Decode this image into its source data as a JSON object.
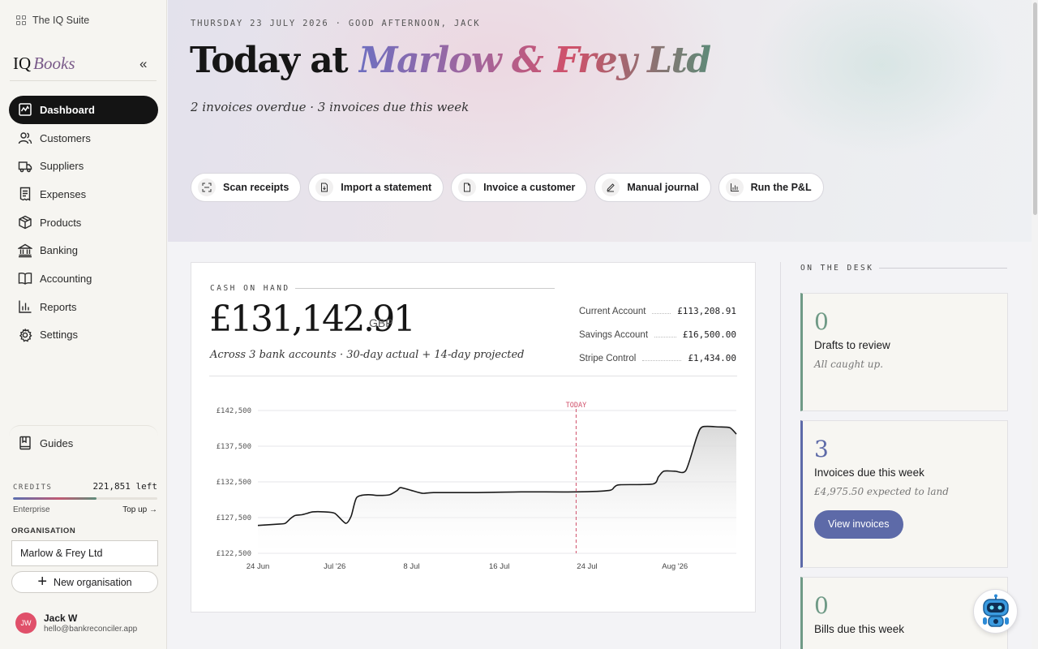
{
  "suite": {
    "label": "The IQ Suite"
  },
  "brand": {
    "iq": "IQ",
    "books": "Books"
  },
  "nav": [
    {
      "label": "Dashboard",
      "icon": "dashboard-icon",
      "active": true
    },
    {
      "label": "Customers",
      "icon": "users-icon"
    },
    {
      "label": "Suppliers",
      "icon": "truck-icon"
    },
    {
      "label": "Expenses",
      "icon": "receipt-icon"
    },
    {
      "label": "Products",
      "icon": "box-icon"
    },
    {
      "label": "Banking",
      "icon": "bank-icon"
    },
    {
      "label": "Accounting",
      "icon": "book-icon"
    },
    {
      "label": "Reports",
      "icon": "bar-chart-icon"
    },
    {
      "label": "Settings",
      "icon": "gear-icon"
    }
  ],
  "guides": {
    "label": "Guides"
  },
  "credits": {
    "label": "CREDITS",
    "value": "221,851 left",
    "plan": "Enterprise",
    "topup": "Top up →",
    "fraction": 0.58
  },
  "organisation": {
    "label": "ORGANISATION",
    "selected": "Marlow & Frey Ltd",
    "new_label": "New organisation"
  },
  "user": {
    "initials": "JW",
    "name": "Jack W",
    "email": "hello@bankreconciler.app"
  },
  "header": {
    "dateline": "THURSDAY 23 JULY 2026 · GOOD AFTERNOON, JACK",
    "title_prefix": "Today at",
    "title_org": "Marlow & Frey Ltd",
    "subline": "2 invoices overdue · 3 invoices due this week"
  },
  "actions": [
    {
      "label": "Scan receipts",
      "icon": "scan-icon"
    },
    {
      "label": "Import a statement",
      "icon": "file-import-icon"
    },
    {
      "label": "Invoice a customer",
      "icon": "invoice-icon"
    },
    {
      "label": "Manual journal",
      "icon": "pencil-icon"
    },
    {
      "label": "Run the P&L",
      "icon": "bar-chart-icon"
    }
  ],
  "cash": {
    "label": "CASH ON HAND",
    "amount": "£131,142.91",
    "currency": "GBP",
    "note": "Across 3 bank accounts · 30-day actual + 14-day projected",
    "accounts": [
      {
        "name": "Current Account",
        "amount": "£113,208.91"
      },
      {
        "name": "Savings Account",
        "amount": "£16,500.00"
      },
      {
        "name": "Stripe Control",
        "amount": "£1,434.00"
      }
    ]
  },
  "chart_data": {
    "type": "area",
    "today_label": "TODAY",
    "today_x": 29,
    "ylim": [
      122500,
      142500
    ],
    "yticks": [
      "£142,500",
      "£137,500",
      "£132,500",
      "£127,500",
      "£122,500"
    ],
    "ytick_values": [
      142500,
      137500,
      132500,
      127500,
      122500
    ],
    "xticks": [
      "24 Jun",
      "Jul '26",
      "8 Jul",
      "16 Jul",
      "24 Jul",
      "Aug '26"
    ],
    "xtick_values": [
      0,
      7,
      14,
      22,
      30,
      38
    ],
    "x": [
      0,
      2,
      2.5,
      3,
      3.4,
      4,
      4.5,
      5,
      6,
      7,
      8,
      8.5,
      9,
      10,
      11,
      12,
      12.7,
      13,
      14,
      15,
      16,
      20,
      24,
      29,
      32,
      32.5,
      33,
      36,
      36.5,
      37,
      38,
      39,
      40,
      40.5,
      42,
      43,
      43.6
    ],
    "y": [
      126400,
      126600,
      126700,
      127400,
      127800,
      127900,
      128100,
      128300,
      128300,
      128100,
      126700,
      127700,
      130300,
      130700,
      130600,
      130700,
      131300,
      131700,
      131300,
      130900,
      131000,
      131000,
      131100,
      131100,
      131300,
      131800,
      132100,
      132200,
      133200,
      134000,
      134000,
      134100,
      138800,
      140200,
      140200,
      140100,
      139200
    ]
  },
  "desk": {
    "label": "ON THE DESK",
    "cards": [
      {
        "count": "0",
        "title": "Drafts to review",
        "sub": "All caught up.",
        "accent": "#6f9a86"
      },
      {
        "count": "3",
        "title": "Invoices due this week",
        "sub": "£4,975.50 expected to land",
        "button": "View invoices",
        "accent": "#5d6aa8"
      },
      {
        "count": "0",
        "title": "Bills due this week",
        "sub": "",
        "accent": "#6f9a86"
      }
    ]
  }
}
